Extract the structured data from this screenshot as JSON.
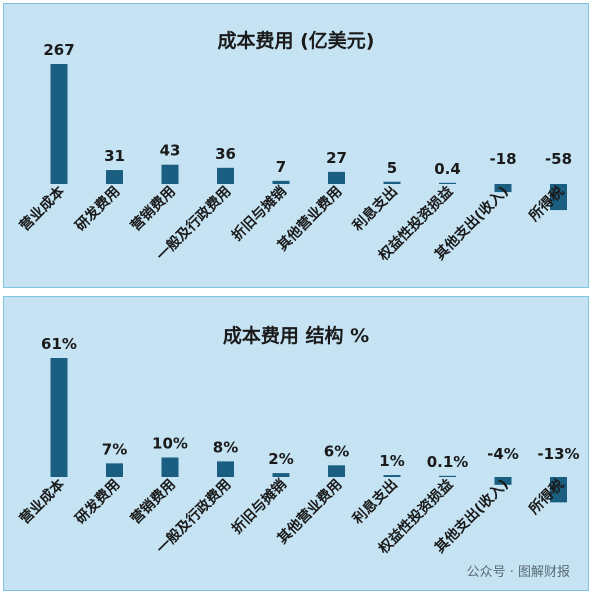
{
  "charts": {
    "top_title": "成本费用 (亿美元)",
    "bottom_title": "成本费用 结构 %"
  },
  "watermark": "公众号 · 图解财报",
  "chart_data": [
    {
      "type": "bar",
      "title": "成本费用 (亿美元)",
      "categories": [
        "营业成本",
        "研发费用",
        "营销费用",
        "一般及行政费用",
        "折旧与摊销",
        "其他营业费用",
        "利息支出",
        "权益性投资损益",
        "其他支出(收入)",
        "所得税"
      ],
      "values": [
        267,
        31,
        43,
        36,
        7,
        27,
        5,
        0.4,
        -18,
        -58
      ],
      "labels": [
        "267",
        "31",
        "43",
        "36",
        "7",
        "27",
        "5",
        "0.4",
        "-18",
        "-58"
      ],
      "color": "#1a5f82"
    },
    {
      "type": "bar",
      "title": "成本费用 结构 %",
      "categories": [
        "营业成本",
        "研发费用",
        "营销费用",
        "一般及行政费用",
        "折旧与摊销",
        "其他营业费用",
        "利息支出",
        "权益性投资损益",
        "其他支出(收入)",
        "所得税"
      ],
      "values": [
        61,
        7,
        10,
        8,
        2,
        6,
        1,
        0.1,
        -4,
        -13
      ],
      "labels": [
        "61%",
        "7%",
        "10%",
        "8%",
        "2%",
        "6%",
        "1%",
        "0.1%",
        "-4%",
        "-13%"
      ],
      "color": "#1a5f82"
    }
  ]
}
